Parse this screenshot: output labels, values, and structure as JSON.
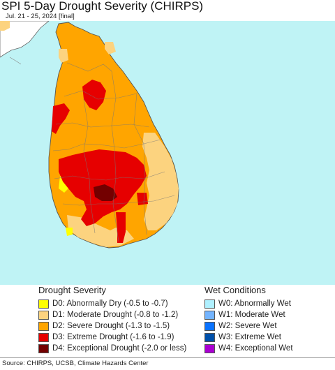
{
  "title": "SPI 5-Day Drought Severity (CHIRPS)",
  "subtitle": "Jul. 21 - 25, 2024 [final]",
  "map": {
    "ocean_color": "#bff3f5",
    "land_color": "#ffa500"
  },
  "legend_drought": {
    "heading": "Drought Severity",
    "items": [
      {
        "label": "D0: Abnormally Dry (-0.5 to -0.7)",
        "color": "#ffff00"
      },
      {
        "label": "D1: Moderate Drought (-0.8 to -1.2)",
        "color": "#fcd37f"
      },
      {
        "label": "D2: Severe Drought (-1.3 to -1.5)",
        "color": "#ffa500"
      },
      {
        "label": "D3: Extreme Drought (-1.6 to -1.9)",
        "color": "#e60000"
      },
      {
        "label": "D4: Exceptional Drought (-2.0 or less)",
        "color": "#730000"
      }
    ]
  },
  "legend_wet": {
    "heading": "Wet Conditions",
    "items": [
      {
        "label": "W0: Abnormally Wet",
        "color": "#aff0ff"
      },
      {
        "label": "W1: Moderate Wet",
        "color": "#73b4ff"
      },
      {
        "label": "W2: Severe Wet",
        "color": "#0a73ff"
      },
      {
        "label": "W3: Extreme Wet",
        "color": "#0050aa"
      },
      {
        "label": "W4: Exceptional Wet",
        "color": "#aa00d2"
      }
    ]
  },
  "source": "Source: CHIRPS, UCSB, Climate Hazards Center"
}
